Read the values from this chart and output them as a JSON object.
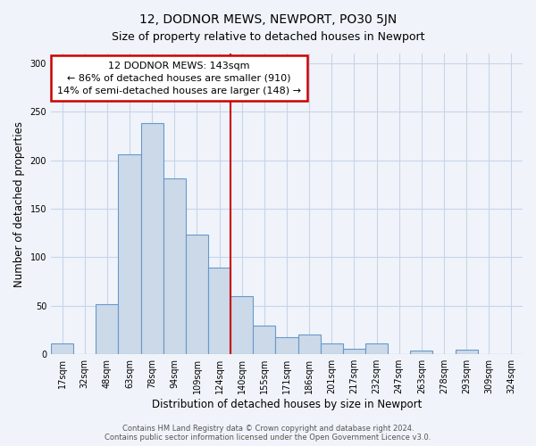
{
  "title": "12, DODNOR MEWS, NEWPORT, PO30 5JN",
  "subtitle": "Size of property relative to detached houses in Newport",
  "xlabel": "Distribution of detached houses by size in Newport",
  "ylabel": "Number of detached properties",
  "bar_labels": [
    "17sqm",
    "32sqm",
    "48sqm",
    "63sqm",
    "78sqm",
    "94sqm",
    "109sqm",
    "124sqm",
    "140sqm",
    "155sqm",
    "171sqm",
    "186sqm",
    "201sqm",
    "217sqm",
    "232sqm",
    "247sqm",
    "263sqm",
    "278sqm",
    "293sqm",
    "309sqm",
    "324sqm"
  ],
  "bar_values": [
    11,
    0,
    52,
    206,
    238,
    181,
    123,
    89,
    60,
    30,
    18,
    20,
    11,
    6,
    11,
    0,
    4,
    0,
    5,
    0,
    0
  ],
  "bar_color": "#ccd9e8",
  "bar_edge_color": "#6699cc",
  "reference_line_x": 8,
  "reference_line_color": "#cc0000",
  "annotation_title": "12 DODNOR MEWS: 143sqm",
  "annotation_line1": "← 86% of detached houses are smaller (910)",
  "annotation_line2": "14% of semi-detached houses are larger (148) →",
  "annotation_box_color": "#ffffff",
  "annotation_box_edge": "#cc0000",
  "ylim": [
    0,
    310
  ],
  "yticks": [
    0,
    50,
    100,
    150,
    200,
    250,
    300
  ],
  "footer_line1": "Contains HM Land Registry data © Crown copyright and database right 2024.",
  "footer_line2": "Contains public sector information licensed under the Open Government Licence v3.0.",
  "bg_color": "#f0f4fa",
  "plot_bg_color": "#f0f4fa",
  "grid_color": "#c8d4e8",
  "title_fontsize": 10,
  "subtitle_fontsize": 9,
  "tick_fontsize": 7,
  "ylabel_fontsize": 8.5,
  "xlabel_fontsize": 8.5,
  "annotation_fontsize": 8,
  "footer_fontsize": 6
}
